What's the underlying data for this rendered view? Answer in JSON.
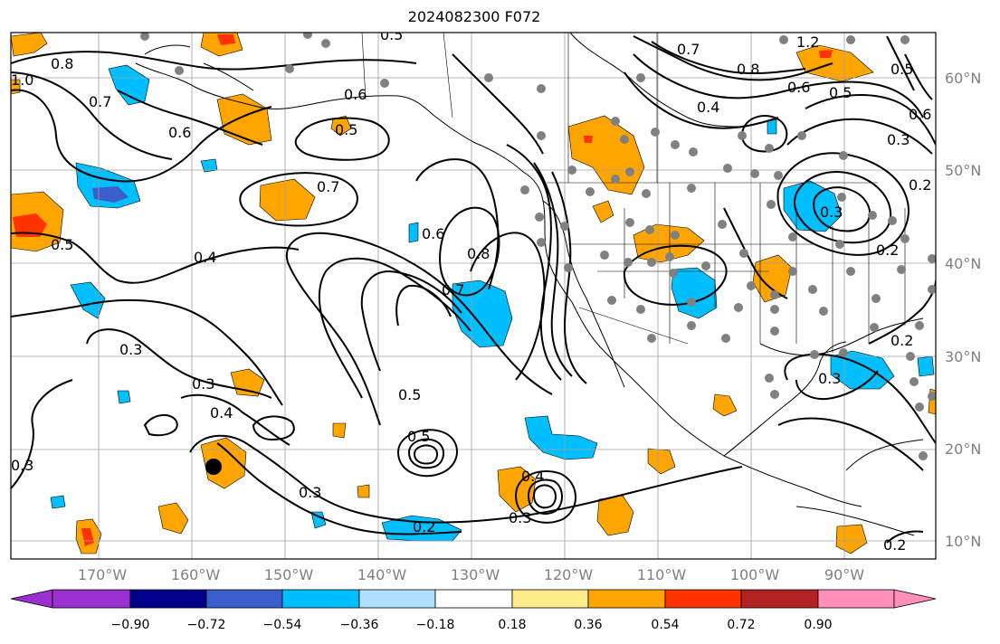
{
  "title": "2024082300 F072",
  "latitude_labels": [
    "60°N",
    "50°N",
    "40°N",
    "30°N",
    "20°N",
    "10°N"
  ],
  "longitude_labels": [
    "170°W",
    "160°W",
    "150°W",
    "140°W",
    "130°W",
    "120°W",
    "110°W",
    "100°W",
    "90°W"
  ],
  "contour_labels": [
    "0.8",
    "1.0",
    "0.7",
    "0.6",
    "0.5",
    "0.6",
    "0.5",
    "0.7",
    "0.4",
    "0.5",
    "0.6",
    "0.8",
    "0.7",
    "0.3",
    "0.3",
    "0.4",
    "0.3",
    "0.3",
    "0.5",
    "0.5",
    "0.2",
    "0.4",
    "0.3",
    "0.7",
    "0.8",
    "0.6",
    "0.5",
    "0.4",
    "1.2",
    "0.5",
    "0.6",
    "0.3",
    "0.2",
    "0.3",
    "0.2",
    "0.3",
    "0.2",
    "0.2"
  ],
  "colorbar": {
    "ticks": [
      "−0.90",
      "−0.72",
      "−0.54",
      "−0.36",
      "−0.18",
      "0.18",
      "0.36",
      "0.54",
      "0.72",
      "0.90"
    ],
    "colors": [
      "#9b30d0",
      "#00008b",
      "#3a5fcd",
      "#00bfff",
      "#aee2ff",
      "#ffffff",
      "#ffec8b",
      "#ffa500",
      "#ff3300",
      "#b22222",
      "#ff8fb8"
    ]
  },
  "colors": {
    "positive_fill": "#ffa500",
    "negative_fill": "#00bfff",
    "contour": "#000000",
    "station_dot": "#808080",
    "grid": "#a0a0a0"
  }
}
